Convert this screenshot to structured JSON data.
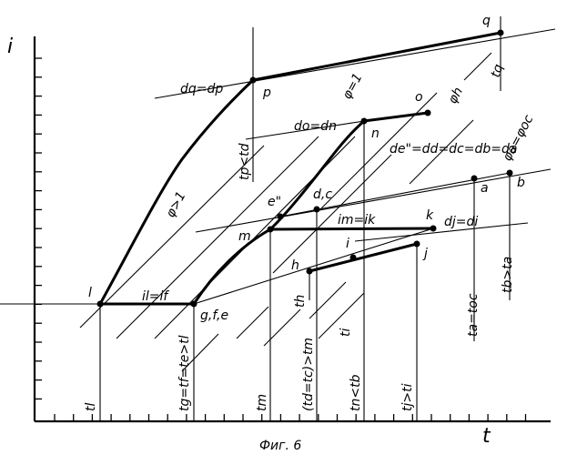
{
  "figure": {
    "caption": "Фиг. 6",
    "axis_y_label": "i",
    "axis_x_label": "t"
  },
  "labels": {
    "q": "q",
    "p": "p",
    "o": "o",
    "n": "n",
    "a": "a",
    "b": "b",
    "dc": "d,c",
    "e2": "e\"",
    "m": "m",
    "k": "k",
    "i": "i",
    "h": "h",
    "j": "j",
    "l": "l",
    "gfe": "g,f,e",
    "dq_dp": "dq=dp",
    "do_dn": "do=dn",
    "phi1": "φ=1",
    "phi_h": "φh",
    "tq": "tq",
    "phi_a": "φa=φoc",
    "de_chain": "de\"=dd=dc=db=da",
    "tp_td": "tp<td",
    "phi_gt1": "φ>1",
    "im_ik": "im=ik",
    "dj_di": "dj=di",
    "tb_ta": "tb>ta",
    "ta_toc": "ta=toc",
    "il_if": "il=if",
    "th": "th",
    "ti": "ti",
    "tl": "tl",
    "tg_chain": "tg=tf=te>tl",
    "tm": "tm",
    "td_tc": "(td=tc)>tm",
    "tn_tb": "tn<tb",
    "tj_ti": "tj>ti"
  }
}
